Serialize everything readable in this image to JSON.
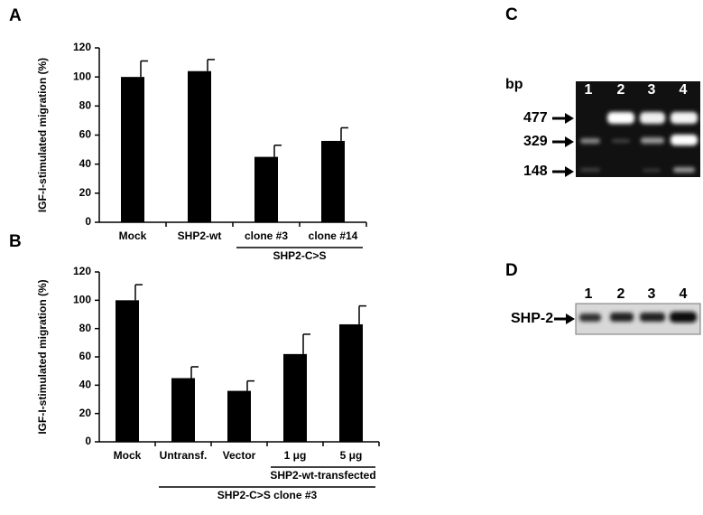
{
  "panels": [
    "A",
    "B",
    "C",
    "D"
  ],
  "chart_data": [
    {
      "type": "bar",
      "ylabel": "IGF-I-stimulated migration (%)",
      "categories": [
        "Mock",
        "SHP2-wt",
        "clone #3",
        "clone #14"
      ],
      "values": [
        100,
        104,
        45,
        56
      ],
      "errors": [
        11,
        8,
        8,
        9
      ],
      "color": "#000000",
      "ylim": [
        0,
        120
      ],
      "yticks": [
        0,
        20,
        40,
        60,
        80,
        100,
        120
      ],
      "groups": [
        "SHP2-C>S"
      ]
    },
    {
      "type": "bar",
      "ylabel": "IGF-I-stimulated migration (%)",
      "categories": [
        "Mock",
        "Untransf.",
        "Vector",
        "1 μg",
        "5 μg"
      ],
      "values": [
        100,
        45,
        36,
        62,
        83
      ],
      "errors": [
        11,
        8,
        7,
        14,
        13
      ],
      "color": "#000000",
      "ylim": [
        0,
        120
      ],
      "yticks": [
        0,
        20,
        40,
        60,
        80,
        100,
        120
      ],
      "groups": [
        "SHP2-wt-transfected",
        "SHP2-C>S clone #3"
      ]
    }
  ],
  "gel_c": {
    "unit": "bp",
    "lanes": [
      "1",
      "2",
      "3",
      "4"
    ],
    "markers": [
      "477",
      "329",
      "148"
    ]
  },
  "gel_d": {
    "label": "SHP-2",
    "lanes": [
      "1",
      "2",
      "3",
      "4"
    ]
  }
}
